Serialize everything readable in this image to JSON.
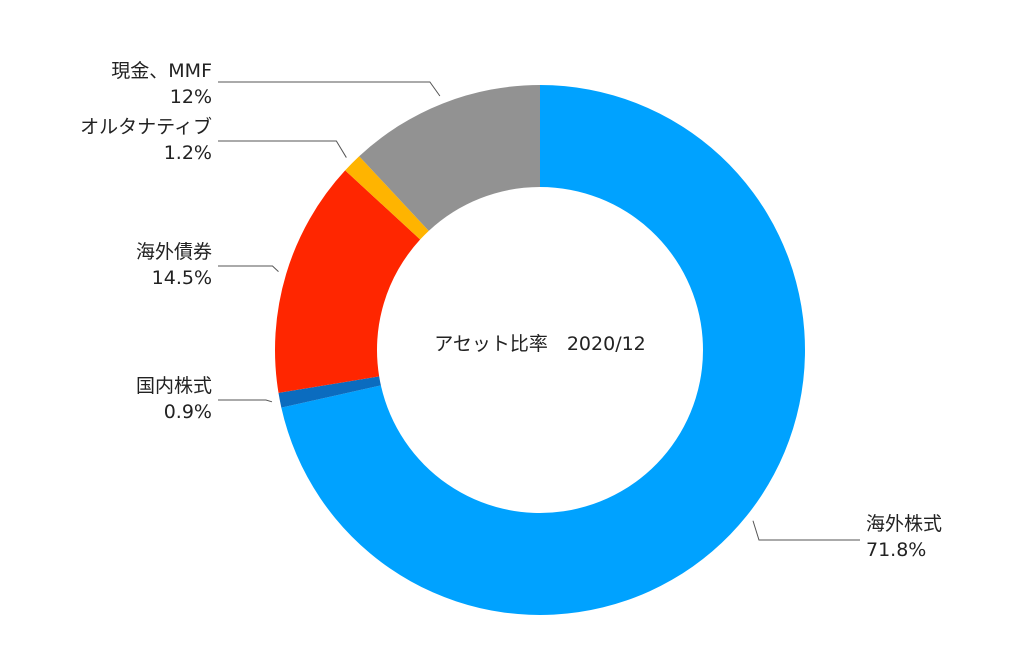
{
  "chart_data": {
    "type": "pie",
    "donut": true,
    "center_label": "アセット比率　2020/12",
    "slices": [
      {
        "name": "海外株式",
        "value": 71.8,
        "display": "71.8%",
        "color": "#00a2ff"
      },
      {
        "name": "国内株式",
        "value": 0.9,
        "display": "0.9%",
        "color": "#0b6cbf"
      },
      {
        "name": "海外債券",
        "value": 14.5,
        "display": "14.5%",
        "color": "#ff2600"
      },
      {
        "name": "オルタナティブ",
        "value": 1.2,
        "display": "1.2%",
        "color": "#ffb400"
      },
      {
        "name": "現金、MMF",
        "value": 12,
        "display": "12%",
        "color": "#929292"
      }
    ],
    "start": "12 o'clock",
    "direction": "clockwise",
    "legend": "none (callout labels)"
  }
}
